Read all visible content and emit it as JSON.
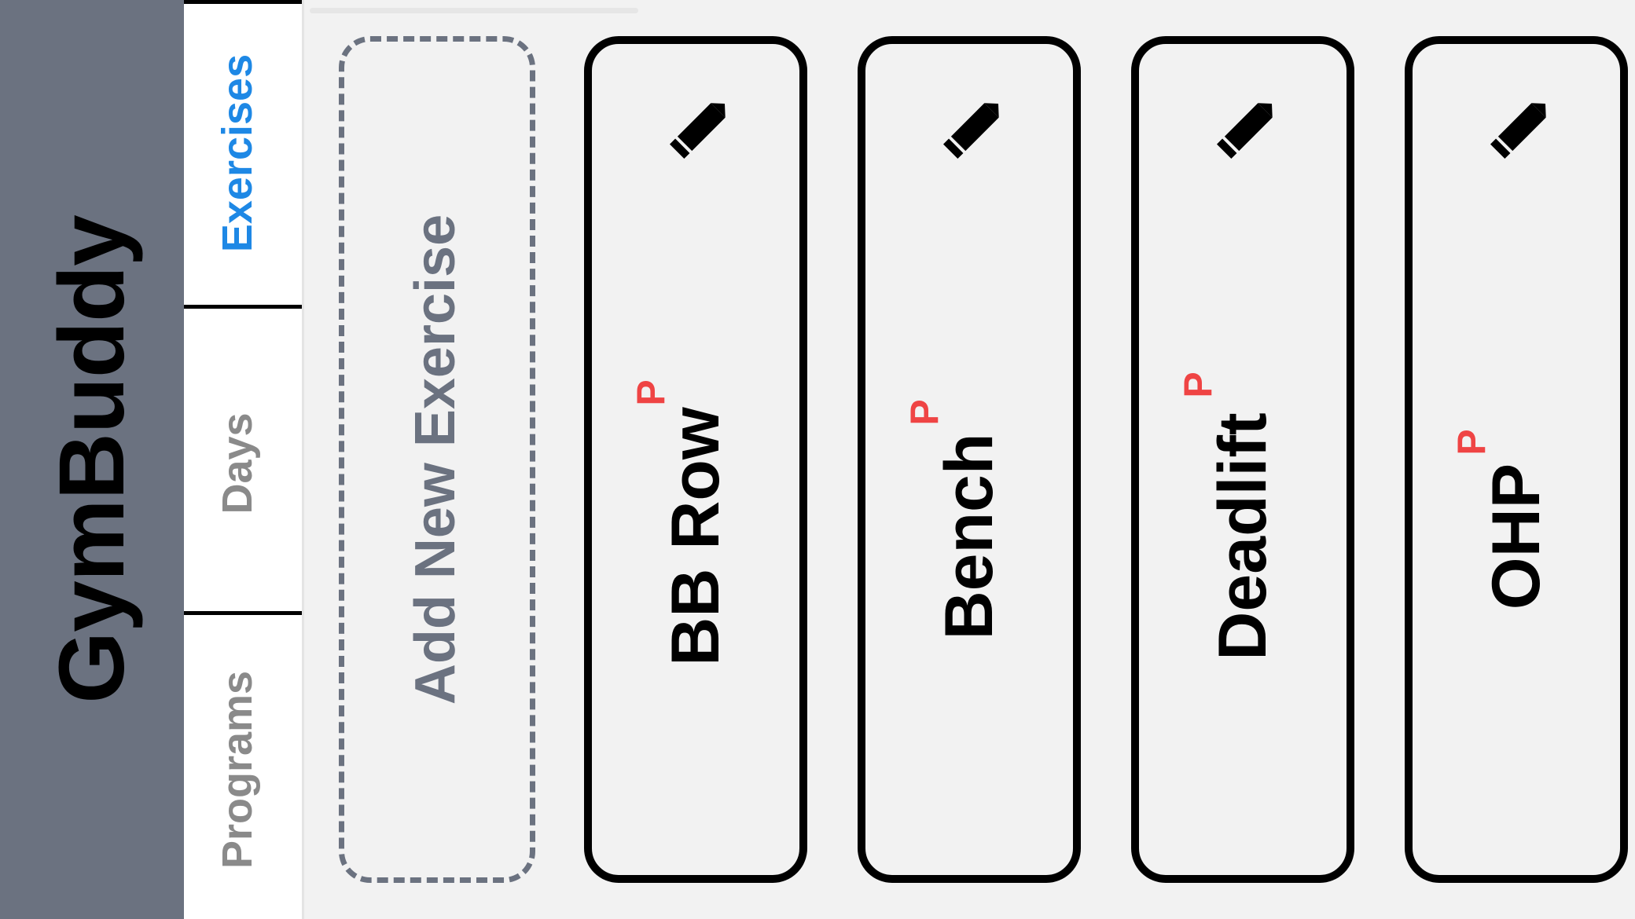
{
  "app": {
    "title": "GymBuddy"
  },
  "tabs": [
    {
      "label": "Exercises",
      "active": true
    },
    {
      "label": "Days",
      "active": false
    },
    {
      "label": "Programs",
      "active": false
    }
  ],
  "add_exercise": {
    "label": "Add New Exercise"
  },
  "exercises": [
    {
      "name": "BB Row",
      "badge": "P"
    },
    {
      "name": "Bench",
      "badge": "P"
    },
    {
      "name": "Deadlift",
      "badge": "P"
    },
    {
      "name": "OHP",
      "badge": "P"
    }
  ],
  "icons": {
    "edit": "pencil-icon"
  },
  "colors": {
    "brand_bg": "#6b7280",
    "active_tab": "#1e88e5",
    "inactive_tab": "#8a8a8a",
    "badge": "#ef4444",
    "card_border": "#000000",
    "background": "#f2f2f2"
  }
}
